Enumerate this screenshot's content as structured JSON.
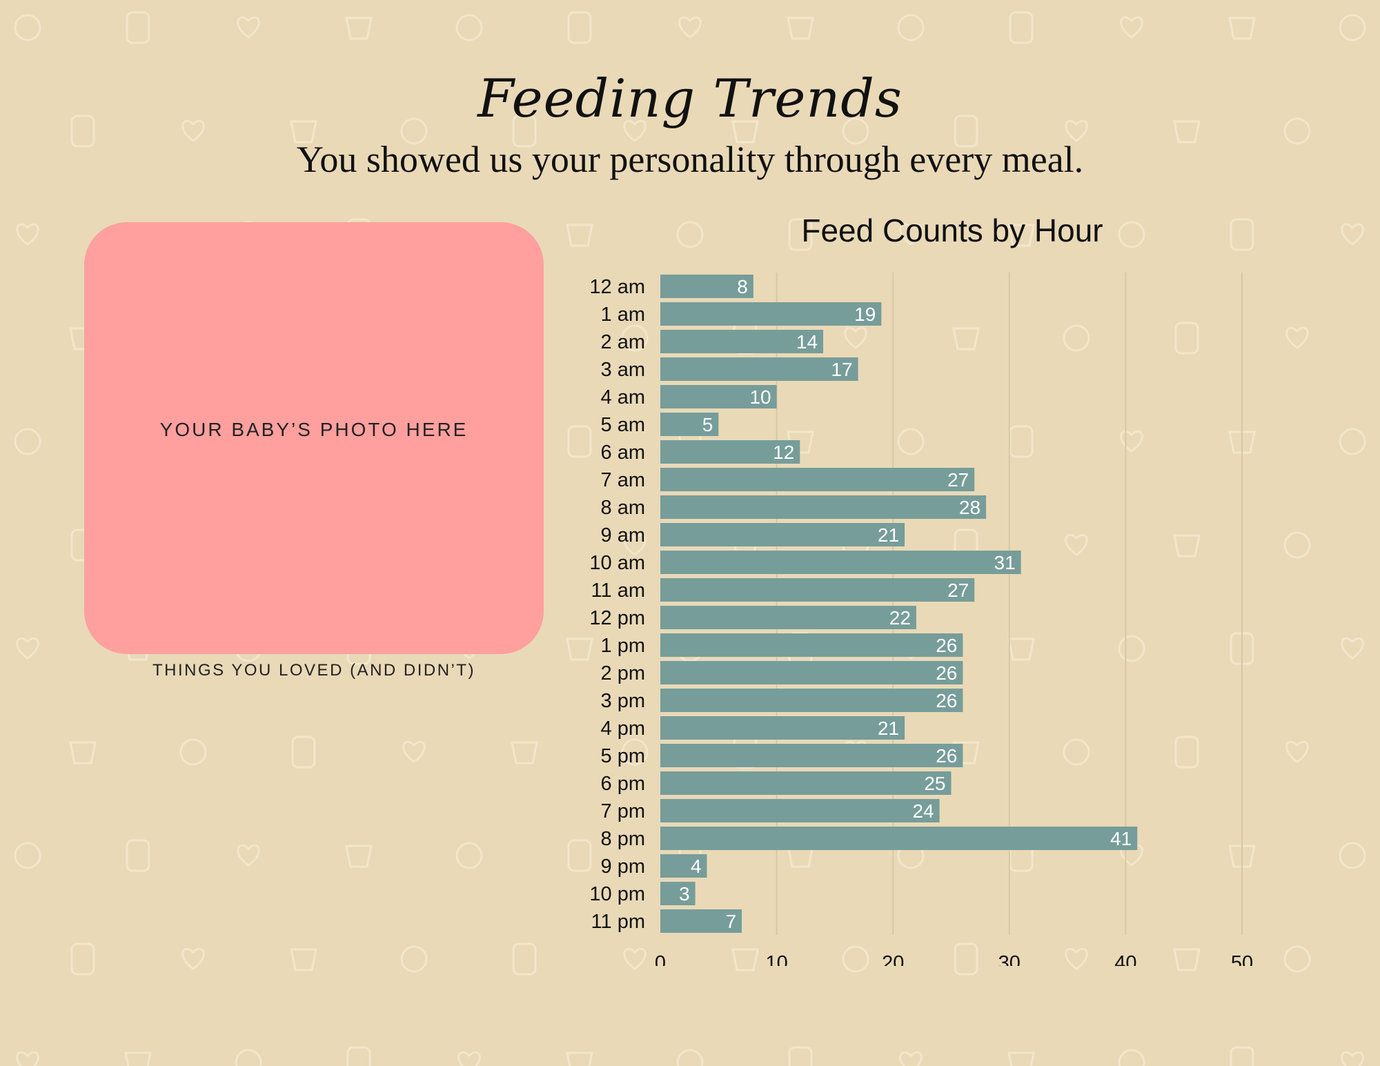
{
  "header": {
    "script_title": "Feeding Trends",
    "subtitle": "You showed us your personality through every meal."
  },
  "photo": {
    "placeholder": "YOUR BABY’S PHOTO HERE",
    "caption": "THINGS YOU LOVED (AND DIDN’T)"
  },
  "colors": {
    "background": "#e9d9b7",
    "bar": "#769d9a",
    "photo_box": "#ffa09f",
    "pattern": "#f2e6cb"
  },
  "chart_data": {
    "type": "bar",
    "orientation": "horizontal",
    "title": "Feed Counts by Hour",
    "categories": [
      "12 am",
      "1 am",
      "2 am",
      "3 am",
      "4 am",
      "5 am",
      "6 am",
      "7 am",
      "8 am",
      "9 am",
      "10 am",
      "11 am",
      "12 pm",
      "1 pm",
      "2 pm",
      "3 pm",
      "4 pm",
      "5 pm",
      "6 pm",
      "7 pm",
      "8 pm",
      "9 pm",
      "10 pm",
      "11 pm"
    ],
    "values": [
      8,
      19,
      14,
      17,
      10,
      5,
      12,
      27,
      28,
      21,
      31,
      27,
      22,
      26,
      26,
      26,
      21,
      26,
      25,
      24,
      41,
      4,
      3,
      7
    ],
    "xlim": [
      0,
      50
    ],
    "xticks": [
      0,
      10,
      20,
      30,
      40,
      50
    ],
    "grid": "vertical",
    "data_labels": true,
    "legend": "none"
  }
}
